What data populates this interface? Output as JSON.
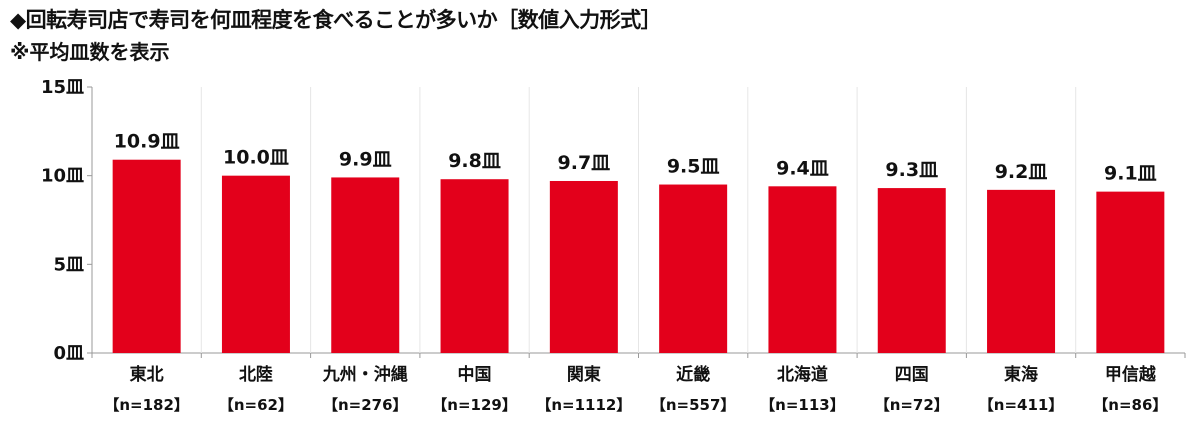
{
  "chart_data": {
    "type": "bar",
    "title": "◆回転寿司店で寿司を何皿程度を食べることが多いか［数値入力形式］",
    "subtitle": "※平均皿数を表示",
    "categories": [
      "東北",
      "北陸",
      "九州・沖縄",
      "中国",
      "関東",
      "近畿",
      "北海道",
      "四国",
      "東海",
      "甲信越"
    ],
    "sample_sizes": [
      "【n=182】",
      "【n=62】",
      "【n=276】",
      "【n=129】",
      "【n=1112】",
      "【n=557】",
      "【n=113】",
      "【n=72】",
      "【n=411】",
      "【n=86】"
    ],
    "values": [
      10.9,
      10.0,
      9.9,
      9.8,
      9.7,
      9.5,
      9.4,
      9.3,
      9.2,
      9.1
    ],
    "value_labels": [
      "10.9皿",
      "10.0皿",
      "9.9皿",
      "9.8皿",
      "9.7皿",
      "9.5皿",
      "9.4皿",
      "9.3皿",
      "9.2皿",
      "9.1皿"
    ],
    "ylim": [
      0,
      15
    ],
    "yticks": [
      0,
      5,
      10,
      15
    ],
    "ytick_labels": [
      "0皿",
      "5皿",
      "10皿",
      "15皿"
    ],
    "bar_color": "#e3001b",
    "grid": false,
    "category_separators": true
  }
}
